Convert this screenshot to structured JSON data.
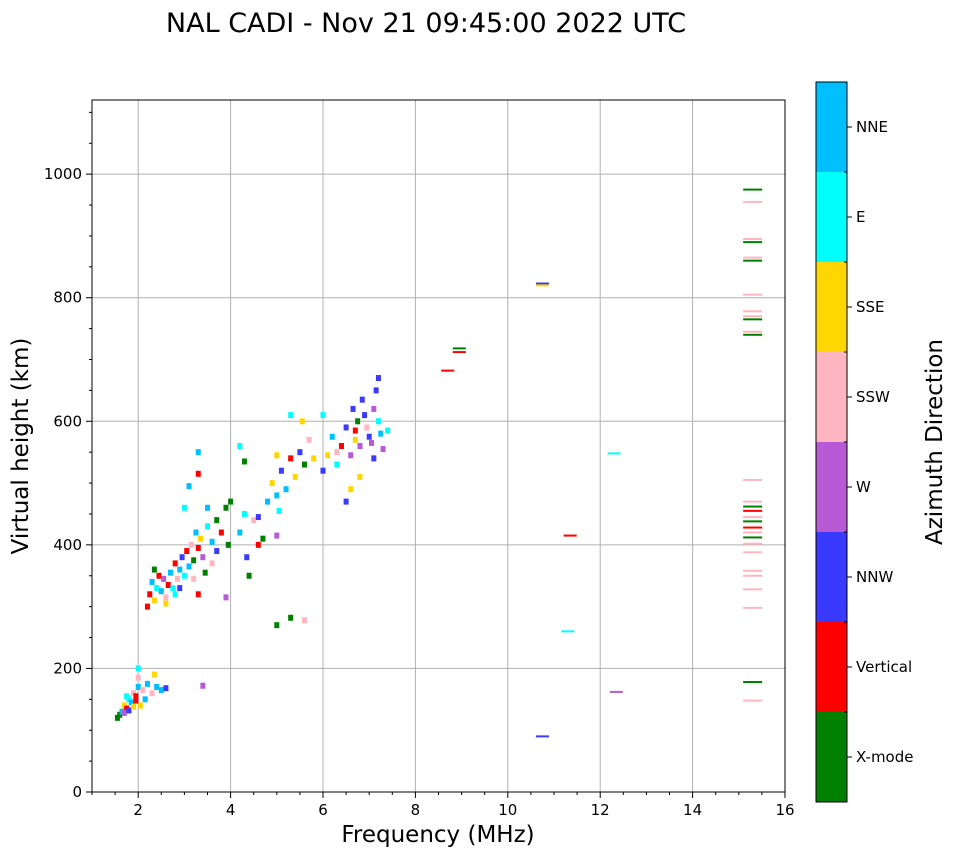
{
  "chart_data": {
    "type": "scatter",
    "title": "NAL CADI - Nov 21 09:45:00 2022 UTC",
    "xlabel": "Frequency (MHz)",
    "ylabel": "Virtual height (km)",
    "xlim": [
      1,
      16
    ],
    "ylim": [
      0,
      1120
    ],
    "xticks": [
      2,
      4,
      6,
      8,
      10,
      12,
      14,
      16
    ],
    "yticks": [
      0,
      200,
      400,
      600,
      800,
      1000
    ],
    "grid": true,
    "colorbar": {
      "label": "Azimuth Direction",
      "categories": [
        {
          "name": "X-mode",
          "color": "#008000"
        },
        {
          "name": "Vertical",
          "color": "#ff0000"
        },
        {
          "name": "NNW",
          "color": "#3a3aff"
        },
        {
          "name": "W",
          "color": "#b65ad6"
        },
        {
          "name": "SSW",
          "color": "#ffb6c1"
        },
        {
          "name": "SSE",
          "color": "#ffd700"
        },
        {
          "name": "E",
          "color": "#00ffff"
        },
        {
          "name": "NNE",
          "color": "#00bfff"
        }
      ]
    },
    "points": [
      [
        1.6,
        125,
        "X-mode"
      ],
      [
        1.65,
        130,
        "NNE"
      ],
      [
        1.7,
        140,
        "SSE"
      ],
      [
        1.75,
        135,
        "Vertical"
      ],
      [
        1.8,
        150,
        "E"
      ],
      [
        1.85,
        145,
        "NNE"
      ],
      [
        1.9,
        160,
        "SSW"
      ],
      [
        1.95,
        155,
        "Vertical"
      ],
      [
        2.0,
        170,
        "NNE"
      ],
      [
        2.05,
        140,
        "SSE"
      ],
      [
        2.1,
        165,
        "SSW"
      ],
      [
        1.7,
        128,
        "W"
      ],
      [
        1.8,
        132,
        "NNW"
      ],
      [
        1.9,
        138,
        "SSE"
      ],
      [
        2.0,
        200,
        "E"
      ],
      [
        2.0,
        185,
        "SSW"
      ],
      [
        2.2,
        175,
        "NNE"
      ],
      [
        2.3,
        160,
        "SSW"
      ],
      [
        2.35,
        190,
        "SSE"
      ],
      [
        2.4,
        170,
        "NNE"
      ],
      [
        2.5,
        165,
        "NNE"
      ],
      [
        2.6,
        168,
        "NNW"
      ],
      [
        1.55,
        120,
        "X-mode"
      ],
      [
        1.75,
        155,
        "E"
      ],
      [
        1.95,
        148,
        "Vertical"
      ],
      [
        2.15,
        150,
        "NNE"
      ],
      [
        2.25,
        320,
        "Vertical"
      ],
      [
        2.3,
        340,
        "NNE"
      ],
      [
        2.35,
        310,
        "SSE"
      ],
      [
        2.4,
        330,
        "E"
      ],
      [
        2.45,
        350,
        "Vertical"
      ],
      [
        2.5,
        325,
        "NNE"
      ],
      [
        2.55,
        345,
        "W"
      ],
      [
        2.6,
        315,
        "SSW"
      ],
      [
        2.65,
        335,
        "Vertical"
      ],
      [
        2.7,
        355,
        "NNE"
      ],
      [
        2.75,
        330,
        "E"
      ],
      [
        2.8,
        370,
        "Vertical"
      ],
      [
        2.85,
        345,
        "SSW"
      ],
      [
        2.9,
        360,
        "NNE"
      ],
      [
        2.95,
        380,
        "NNW"
      ],
      [
        3.0,
        350,
        "E"
      ],
      [
        3.05,
        390,
        "Vertical"
      ],
      [
        3.1,
        365,
        "NNE"
      ],
      [
        3.15,
        400,
        "SSW"
      ],
      [
        3.2,
        375,
        "X-mode"
      ],
      [
        3.25,
        420,
        "NNE"
      ],
      [
        3.3,
        395,
        "Vertical"
      ],
      [
        3.35,
        410,
        "SSE"
      ],
      [
        3.4,
        380,
        "W"
      ],
      [
        3.5,
        430,
        "E"
      ],
      [
        3.6,
        405,
        "NNE"
      ],
      [
        3.7,
        440,
        "X-mode"
      ],
      [
        3.8,
        420,
        "Vertical"
      ],
      [
        3.9,
        460,
        "X-mode"
      ],
      [
        4.0,
        470,
        "X-mode"
      ],
      [
        3.3,
        515,
        "Vertical"
      ],
      [
        3.3,
        550,
        "NNE"
      ],
      [
        3.1,
        495,
        "NNE"
      ],
      [
        3.0,
        460,
        "E"
      ],
      [
        3.45,
        355,
        "X-mode"
      ],
      [
        3.6,
        370,
        "SSW"
      ],
      [
        3.9,
        315,
        "W"
      ],
      [
        3.95,
        400,
        "X-mode"
      ],
      [
        4.2,
        420,
        "NNE"
      ],
      [
        4.3,
        450,
        "E"
      ],
      [
        4.35,
        380,
        "NNW"
      ],
      [
        4.4,
        350,
        "X-mode"
      ],
      [
        4.5,
        440,
        "SSW"
      ],
      [
        4.6,
        400,
        "Vertical"
      ],
      [
        4.7,
        410,
        "X-mode"
      ],
      [
        4.8,
        470,
        "NNE"
      ],
      [
        4.9,
        500,
        "SSE"
      ],
      [
        5.0,
        480,
        "NNE"
      ],
      [
        5.05,
        455,
        "E"
      ],
      [
        5.1,
        520,
        "NNW"
      ],
      [
        5.2,
        490,
        "NNE"
      ],
      [
        5.3,
        540,
        "Vertical"
      ],
      [
        5.4,
        510,
        "SSE"
      ],
      [
        5.5,
        550,
        "NNW"
      ],
      [
        5.6,
        530,
        "X-mode"
      ],
      [
        5.7,
        570,
        "SSW"
      ],
      [
        5.8,
        540,
        "SSE"
      ],
      [
        5.3,
        610,
        "E"
      ],
      [
        5.55,
        600,
        "SSE"
      ],
      [
        5.0,
        545,
        "SSE"
      ],
      [
        4.2,
        560,
        "E"
      ],
      [
        4.3,
        535,
        "X-mode"
      ],
      [
        5.0,
        270,
        "X-mode"
      ],
      [
        5.3,
        282,
        "X-mode"
      ],
      [
        5.6,
        278,
        "SSW"
      ],
      [
        3.4,
        172,
        "W"
      ],
      [
        2.9,
        330,
        "NNW"
      ],
      [
        2.6,
        305,
        "SSE"
      ],
      [
        2.35,
        360,
        "X-mode"
      ],
      [
        2.2,
        300,
        "Vertical"
      ],
      [
        2.8,
        320,
        "E"
      ],
      [
        3.2,
        345,
        "SSW"
      ],
      [
        3.3,
        320,
        "Vertical"
      ],
      [
        3.5,
        460,
        "NNE"
      ],
      [
        3.7,
        390,
        "NNW"
      ],
      [
        4.6,
        445,
        "NNW"
      ],
      [
        5.0,
        415,
        "W"
      ],
      [
        6.0,
        520,
        "NNW"
      ],
      [
        6.1,
        545,
        "SSE"
      ],
      [
        6.2,
        575,
        "NNE"
      ],
      [
        6.3,
        530,
        "E"
      ],
      [
        6.4,
        560,
        "Vertical"
      ],
      [
        6.5,
        590,
        "NNW"
      ],
      [
        6.6,
        545,
        "W"
      ],
      [
        6.65,
        620,
        "NNW"
      ],
      [
        6.7,
        570,
        "SSE"
      ],
      [
        6.75,
        600,
        "X-mode"
      ],
      [
        6.8,
        560,
        "W"
      ],
      [
        6.85,
        635,
        "NNW"
      ],
      [
        6.9,
        610,
        "NNW"
      ],
      [
        6.95,
        590,
        "SSW"
      ],
      [
        7.0,
        575,
        "NNW"
      ],
      [
        7.05,
        565,
        "W"
      ],
      [
        7.1,
        620,
        "W"
      ],
      [
        7.15,
        650,
        "NNW"
      ],
      [
        7.2,
        600,
        "E"
      ],
      [
        7.25,
        580,
        "NNE"
      ],
      [
        7.3,
        555,
        "W"
      ],
      [
        7.2,
        670,
        "NNW"
      ],
      [
        6.6,
        490,
        "SSE"
      ],
      [
        6.8,
        510,
        "SSE"
      ],
      [
        7.1,
        540,
        "NNW"
      ],
      [
        6.5,
        470,
        "NNW"
      ],
      [
        6.0,
        610,
        "E"
      ],
      [
        7.4,
        585,
        "E"
      ],
      [
        6.3,
        550,
        "SSW"
      ],
      [
        6.7,
        585,
        "Vertical"
      ],
      [
        8.7,
        682,
        "Vertical"
      ],
      [
        8.95,
        718,
        "X-mode"
      ],
      [
        8.95,
        712,
        "Vertical"
      ],
      [
        10.75,
        823,
        "NNW"
      ],
      [
        10.75,
        820,
        "SSE"
      ],
      [
        11.35,
        415,
        "Vertical"
      ],
      [
        11.3,
        260,
        "E"
      ],
      [
        12.3,
        548,
        "E"
      ],
      [
        12.35,
        162,
        "W"
      ],
      [
        10.75,
        90,
        "NNW"
      ],
      [
        15.3,
        975,
        "X-mode"
      ],
      [
        15.3,
        955,
        "SSW"
      ],
      [
        15.3,
        895,
        "SSW"
      ],
      [
        15.3,
        890,
        "X-mode"
      ],
      [
        15.3,
        865,
        "SSW"
      ],
      [
        15.3,
        860,
        "X-mode"
      ],
      [
        15.3,
        805,
        "SSW"
      ],
      [
        15.3,
        778,
        "SSW"
      ],
      [
        15.3,
        770,
        "SSW"
      ],
      [
        15.3,
        765,
        "X-mode"
      ],
      [
        15.3,
        745,
        "SSW"
      ],
      [
        15.3,
        740,
        "X-mode"
      ],
      [
        15.3,
        505,
        "SSW"
      ],
      [
        15.3,
        470,
        "SSW"
      ],
      [
        15.3,
        462,
        "X-mode"
      ],
      [
        15.3,
        455,
        "Vertical"
      ],
      [
        15.3,
        445,
        "SSW"
      ],
      [
        15.3,
        438,
        "X-mode"
      ],
      [
        15.3,
        428,
        "Vertical"
      ],
      [
        15.3,
        420,
        "SSW"
      ],
      [
        15.3,
        412,
        "X-mode"
      ],
      [
        15.3,
        402,
        "SSW"
      ],
      [
        15.3,
        388,
        "SSW"
      ],
      [
        15.3,
        358,
        "SSW"
      ],
      [
        15.3,
        350,
        "SSW"
      ],
      [
        15.3,
        328,
        "SSW"
      ],
      [
        15.3,
        298,
        "SSW"
      ],
      [
        15.3,
        178,
        "X-mode"
      ],
      [
        15.3,
        148,
        "SSW"
      ]
    ]
  }
}
